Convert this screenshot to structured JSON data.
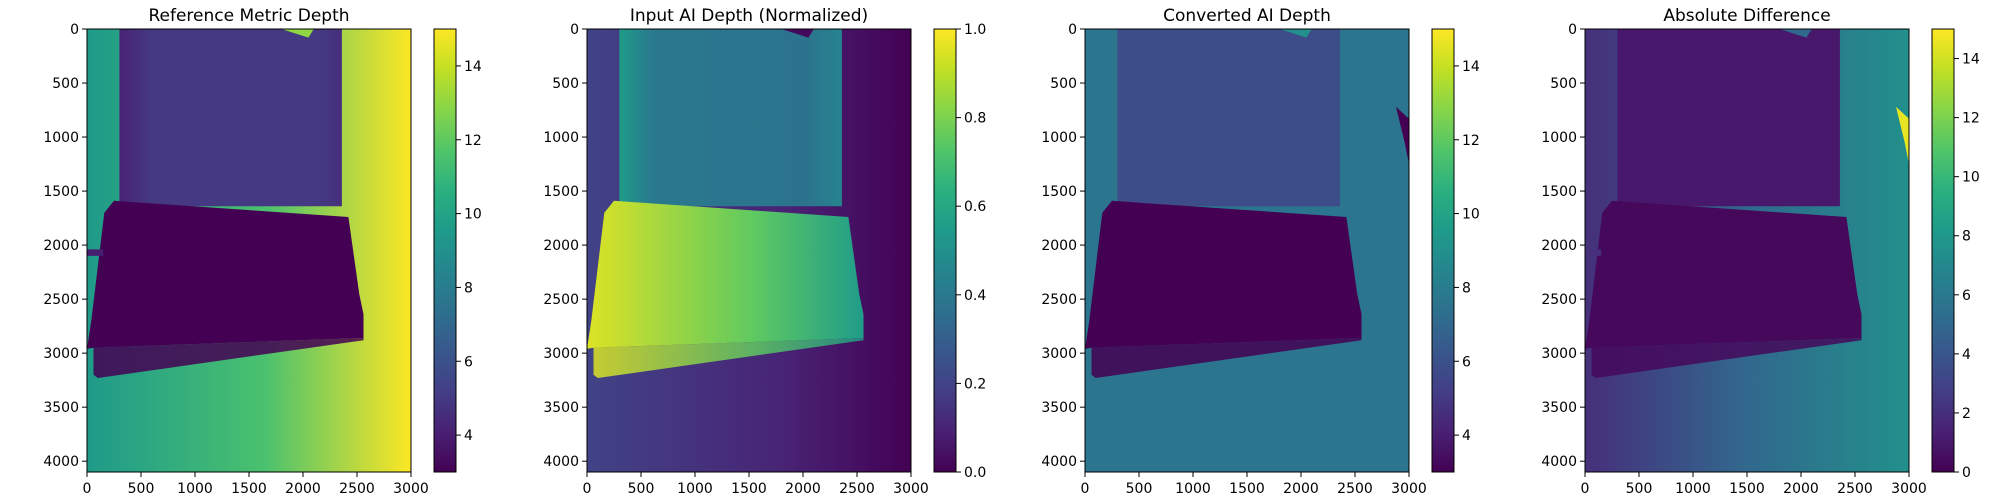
{
  "chart_data": [
    {
      "type": "heatmap",
      "title": "Reference Metric Depth",
      "xlim": [
        0,
        3000
      ],
      "ylim": [
        4100,
        0
      ],
      "x_ticks": [
        "0",
        "500",
        "1000",
        "1500",
        "2000",
        "2500",
        "3000"
      ],
      "y_ticks": [
        "0",
        "500",
        "1000",
        "1500",
        "2000",
        "2500",
        "3000",
        "3500",
        "4000"
      ],
      "colorbar": {
        "vmin": 3,
        "vmax": 15,
        "ticks": [
          "4",
          "6",
          "8",
          "10",
          "12",
          "14"
        ]
      },
      "colormap": "viridis",
      "field": {
        "corridor": 5.0,
        "frame_left": 8.4,
        "frame_right": 15.0,
        "lower_left": 9.5,
        "lower_right": 15.0,
        "wedge_top": 2.9,
        "wedge_bottom": 3.8
      }
    },
    {
      "type": "heatmap",
      "title": "Input AI Depth (Normalized)",
      "xlim": [
        0,
        3000
      ],
      "ylim": [
        4100,
        0
      ],
      "x_ticks": [
        "0",
        "500",
        "1000",
        "1500",
        "2000",
        "2500",
        "3000"
      ],
      "y_ticks": [
        "0",
        "500",
        "1000",
        "1500",
        "2000",
        "2500",
        "3000",
        "3500",
        "4000"
      ],
      "colorbar": {
        "vmin": 0,
        "vmax": 1,
        "ticks": [
          "0.0",
          "0.2",
          "0.4",
          "0.6",
          "0.8",
          "1.0"
        ]
      },
      "colormap": "viridis",
      "field": {
        "corridor": 0.4,
        "frame_left": 0.15,
        "frame_right": 0.0,
        "lower_left": 0.2,
        "lower_right": 0.0,
        "wedge_left": 0.95,
        "wedge_right": 0.55
      }
    },
    {
      "type": "heatmap",
      "title": "Converted AI Depth",
      "xlim": [
        0,
        3000
      ],
      "ylim": [
        4100,
        0
      ],
      "x_ticks": [
        "0",
        "500",
        "1000",
        "1500",
        "2000",
        "2500",
        "3000"
      ],
      "y_ticks": [
        "0",
        "500",
        "1000",
        "1500",
        "2000",
        "2500",
        "3000",
        "3500",
        "4000"
      ],
      "colorbar": {
        "vmin": 3,
        "vmax": 15,
        "ticks": [
          "4",
          "6",
          "8",
          "10",
          "12",
          "14"
        ]
      },
      "colormap": "viridis",
      "field": {
        "corridor": 5.8,
        "frame": 7.8,
        "lower": 7.6,
        "wedge_top": 3.0,
        "wedge_bottom": 4.0
      }
    },
    {
      "type": "heatmap",
      "title": "Absolute Difference",
      "xlim": [
        0,
        3000
      ],
      "ylim": [
        4100,
        0
      ],
      "x_ticks": [
        "0",
        "500",
        "1000",
        "1500",
        "2000",
        "2500",
        "3000"
      ],
      "y_ticks": [
        "0",
        "500",
        "1000",
        "1500",
        "2000",
        "2500",
        "3000",
        "3500",
        "4000"
      ],
      "colorbar": {
        "vmin": 0,
        "vmax": 15,
        "ticks": [
          "0",
          "2",
          "4",
          "6",
          "8",
          "10",
          "12",
          "14"
        ]
      },
      "colormap": "viridis",
      "field": {
        "corridor": 1.0,
        "frame_left": 2.5,
        "frame_right": 7.0,
        "lower_left": 2.0,
        "lower_right": 7.5,
        "wedge": 0.3
      }
    }
  ]
}
